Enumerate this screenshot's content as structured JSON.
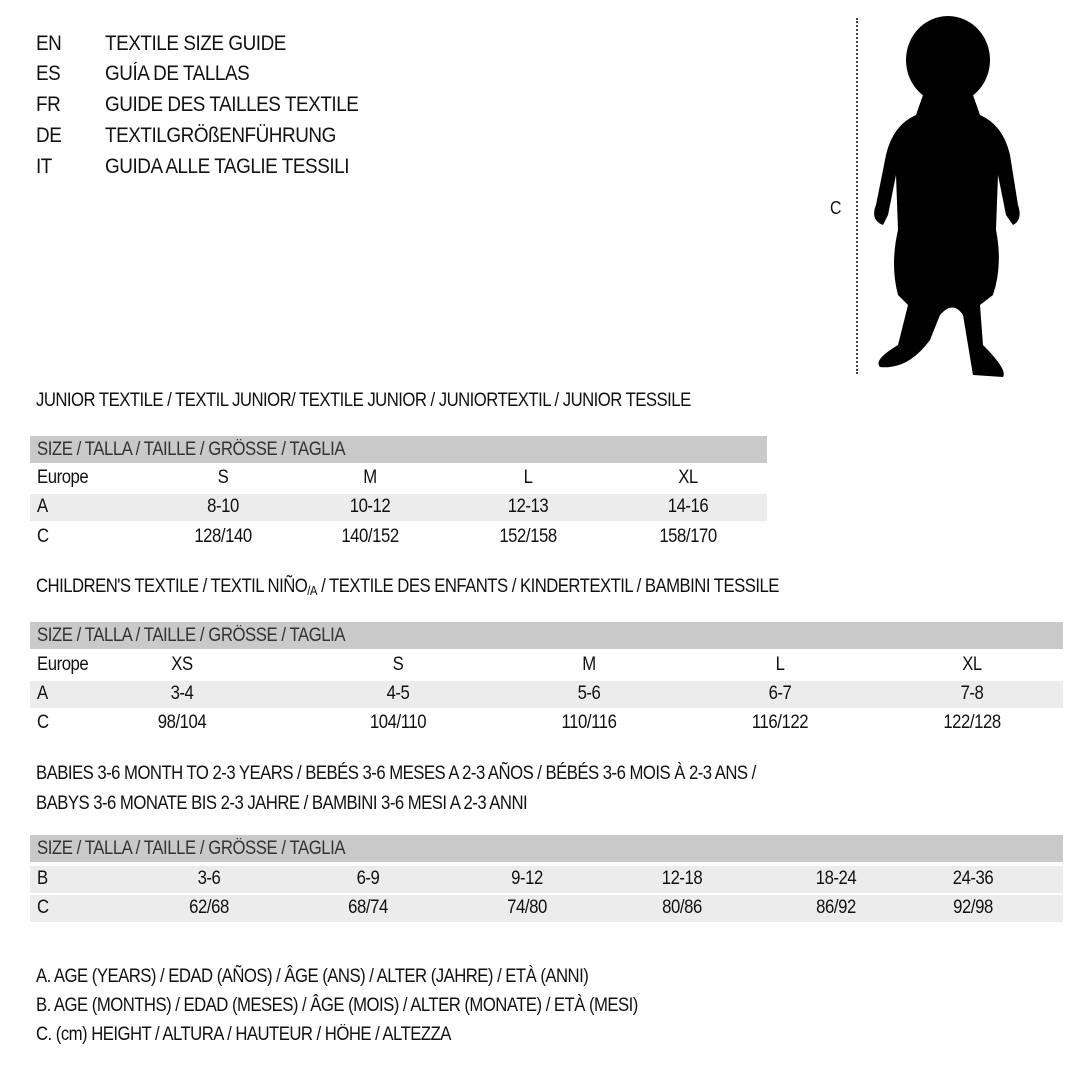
{
  "titles": [
    {
      "lang": "EN",
      "text": "TEXTILE SIZE GUIDE"
    },
    {
      "lang": "ES",
      "text": "GUÍA DE TALLAS"
    },
    {
      "lang": "FR",
      "text": "GUIDE DES TAILLES TEXTILE"
    },
    {
      "lang": "DE",
      "text": "TEXTILGRÖßENFÜHRUNG"
    },
    {
      "lang": "IT",
      "text": "GUIDA ALLE TAGLIE TESSILI"
    }
  ],
  "figure": {
    "measure_label": "C",
    "icon": "baby-silhouette-icon"
  },
  "size_header": "SIZE / TALLA / TAILLE / GRÖSSE / TAGLIA",
  "junior": {
    "title": "JUNIOR TEXTILE / TEXTIL JUNIOR/ TEXTILE JUNIOR / JUNIORTEXTIL / JUNIOR TESSILE",
    "rows": [
      {
        "label": "Europe",
        "values": [
          "S",
          "M",
          "L",
          "XL"
        ]
      },
      {
        "label": "A",
        "values": [
          "8-10",
          "10-12",
          "12-13",
          "14-16"
        ]
      },
      {
        "label": "C",
        "values": [
          "128/140",
          "140/152",
          "152/158",
          "158/170"
        ]
      }
    ]
  },
  "children": {
    "title_a": "CHILDREN'S TEXTILE / TEXTIL NIÑO",
    "title_sub": "/A",
    "title_b": " / TEXTILE DES ENFANTS / KINDERTEXTIL / BAMBINI TESSILE",
    "rows": [
      {
        "label": "Europe",
        "values": [
          "XS",
          "S",
          "M",
          "L",
          "XL"
        ]
      },
      {
        "label": "A",
        "values": [
          "3-4",
          "4-5",
          "5-6",
          "6-7",
          "7-8"
        ]
      },
      {
        "label": "C",
        "values": [
          "98/104",
          "104/110",
          "110/116",
          "116/122",
          "122/128"
        ]
      }
    ]
  },
  "babies": {
    "title_line1": "BABIES 3-6 MONTH TO 2-3 YEARS / BEBÉS 3-6 MESES A 2-3 AÑOS / BÉBÉS 3-6 MOIS À 2-3 ANS /",
    "title_line2": "BABYS 3-6 MONATE BIS 2-3 JAHRE / BAMBINI 3-6 MESI A 2-3 ANNI",
    "rows": [
      {
        "label": "B",
        "values": [
          "3-6",
          "6-9",
          "9-12",
          "12-18",
          "18-24",
          "24-36"
        ]
      },
      {
        "label": "C",
        "values": [
          "62/68",
          "68/74",
          "74/80",
          "80/86",
          "86/92",
          "92/98"
        ]
      }
    ]
  },
  "legend": [
    "A. AGE (YEARS) / EDAD (AÑOS) / ÂGE (ANS) / ALTER (JAHRE) / ETÀ (ANNI)",
    "B. AGE (MONTHS) / EDAD (MESES) / ÂGE (MOIS) / ALTER (MONATE) / ETÀ (MESI)",
    "C. (cm) HEIGHT / ALTURA / HAUTEUR / HÖHE / ALTEZZA"
  ]
}
